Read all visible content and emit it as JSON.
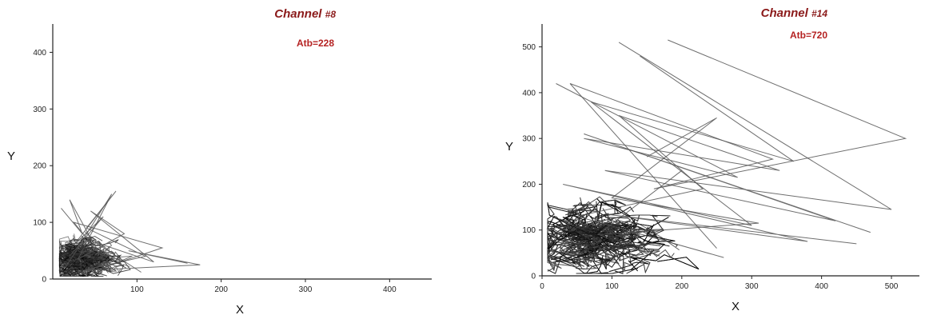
{
  "chart_data": [
    {
      "type": "line",
      "panel": "left",
      "annotation": {
        "channel_label": "Channel",
        "channel_num": "#8",
        "atb": "Atb=228"
      },
      "xlabel": "X",
      "ylabel": "Y",
      "xlim": [
        0,
        450
      ],
      "ylim": [
        0,
        450
      ],
      "xticks": [
        "100",
        "200",
        "300",
        "400"
      ],
      "yticks": [
        "0",
        "100",
        "200",
        "300",
        "400"
      ],
      "xtick_values": [
        100,
        200,
        300,
        400
      ],
      "ytick_values": [
        0,
        100,
        200,
        300,
        400
      ],
      "cluster": {
        "x_center": 35,
        "y_center": 35,
        "x_spread": 25,
        "y_spread": 22,
        "density": "dense"
      },
      "series": [
        {
          "x": [
            20,
            60,
            25,
            75,
            40,
            110,
            35,
            175,
            90,
            160
          ],
          "y": [
            40,
            110,
            60,
            155,
            90,
            40,
            15,
            25,
            50,
            28
          ]
        },
        {
          "x": [
            10,
            35,
            20,
            55,
            25,
            130,
            60,
            30,
            80,
            45
          ],
          "y": [
            125,
            80,
            140,
            45,
            100,
            55,
            20,
            10,
            35,
            75
          ]
        },
        {
          "x": [
            15,
            70,
            30,
            85,
            45,
            120,
            50,
            105
          ],
          "y": [
            20,
            150,
            35,
            80,
            120,
            30,
            65,
            12
          ]
        }
      ]
    },
    {
      "type": "line",
      "panel": "right",
      "annotation": {
        "channel_label": "Channel",
        "channel_num": "#14",
        "atb": "Atb=720"
      },
      "xlabel": "X",
      "ylabel": "Y",
      "xlim": [
        0,
        540
      ],
      "ylim": [
        0,
        550
      ],
      "xticks": [
        "0",
        "100",
        "200",
        "300",
        "400",
        "500"
      ],
      "yticks": [
        "0",
        "100",
        "200",
        "300",
        "400",
        "500"
      ],
      "xtick_values": [
        0,
        100,
        200,
        300,
        400,
        500
      ],
      "ytick_values": [
        0,
        100,
        200,
        300,
        400,
        500
      ],
      "cluster": {
        "x_center": 80,
        "y_center": 85,
        "x_spread": 60,
        "y_spread": 45,
        "density": "dense"
      },
      "series": [
        {
          "x": [
            180,
            520,
            160,
            330,
            40,
            250
          ],
          "y": [
            515,
            300,
            190,
            255,
            420,
            60
          ]
        },
        {
          "x": [
            110,
            500,
            90,
            420,
            60,
            470
          ],
          "y": [
            510,
            145,
            230,
            120,
            310,
            95
          ]
        },
        {
          "x": [
            140,
            360,
            70,
            300,
            30,
            380,
            90,
            450
          ],
          "y": [
            480,
            250,
            380,
            110,
            200,
            75,
            135,
            70
          ]
        },
        {
          "x": [
            20,
            280,
            60,
            340,
            110,
            230,
            50,
            260
          ],
          "y": [
            420,
            215,
            300,
            230,
            350,
            190,
            130,
            40
          ]
        },
        {
          "x": [
            150,
            250,
            100,
            310,
            80,
            200
          ],
          "y": [
            260,
            345,
            170,
            115,
            90,
            230
          ]
        }
      ]
    }
  ]
}
